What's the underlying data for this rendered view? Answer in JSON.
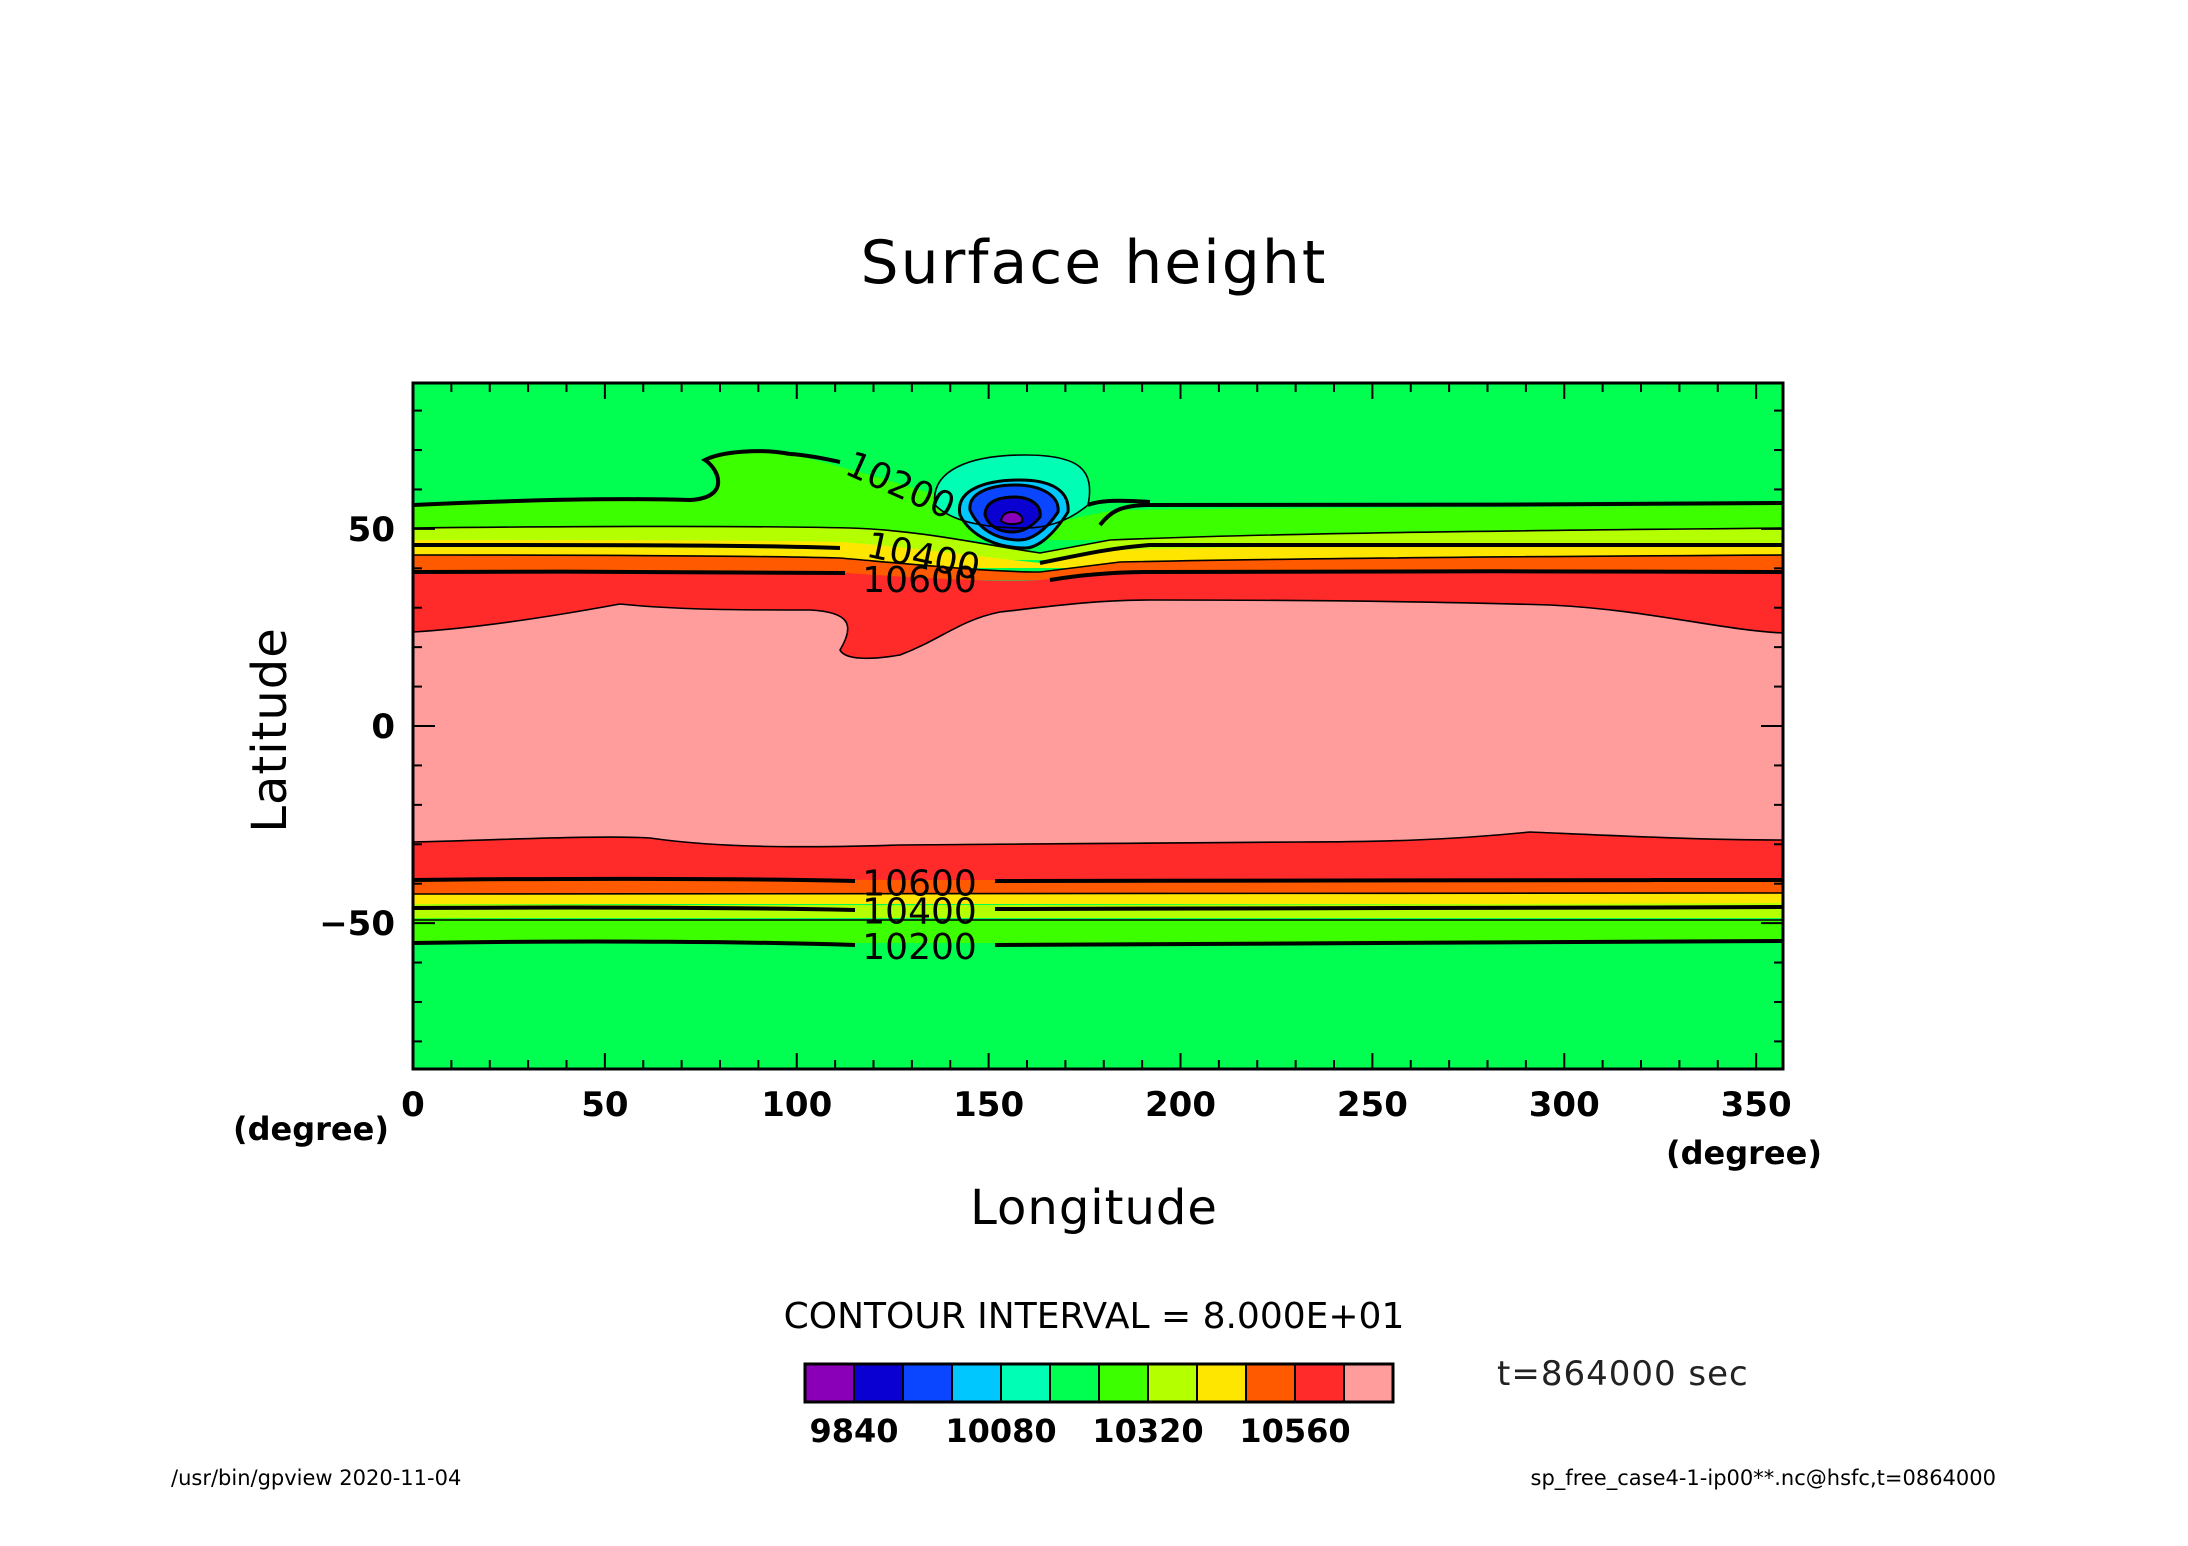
{
  "chart_data": {
    "type": "contour",
    "title": "Surface height",
    "xlabel": "Longitude",
    "ylabel": "Latitude",
    "x_unit": "(degree)",
    "y_unit": "(degree)",
    "xlim": [
      0,
      357
    ],
    "ylim": [
      -87,
      87
    ],
    "xticks": [
      0,
      50,
      100,
      150,
      200,
      250,
      300,
      350
    ],
    "yticks": [
      -50,
      0,
      50
    ],
    "contour_interval_label": "CONTOUR INTERVAL = 8.000E+01",
    "contour_labels": [
      {
        "text": "10200",
        "lon": 127,
        "lat": 61
      },
      {
        "text": "10400",
        "lon": 133,
        "lat": 43
      },
      {
        "text": "10600",
        "lon": 132,
        "lat": 37
      },
      {
        "text": "10600",
        "lon": 132,
        "lat": -40
      },
      {
        "text": "10400",
        "lon": 132,
        "lat": -47
      },
      {
        "text": "10200",
        "lon": 132,
        "lat": -56
      }
    ],
    "colorbar": {
      "colors": [
        "#8a00b8",
        "#0a00d2",
        "#0a46ff",
        "#00c8ff",
        "#00ffb4",
        "#00ff50",
        "#3cff00",
        "#b4ff00",
        "#ffe600",
        "#ff5a00",
        "#ff2a2a",
        "#ff9d9d"
      ],
      "tick_labels": [
        "9840",
        "10080",
        "10320",
        "10560"
      ]
    },
    "time_label": "t=864000 sec"
  },
  "footer": {
    "left": "/usr/bin/gpview   2020-11-04",
    "right": "sp_free_case4-1-ip00**.nc@hsfc,t=0864000"
  }
}
